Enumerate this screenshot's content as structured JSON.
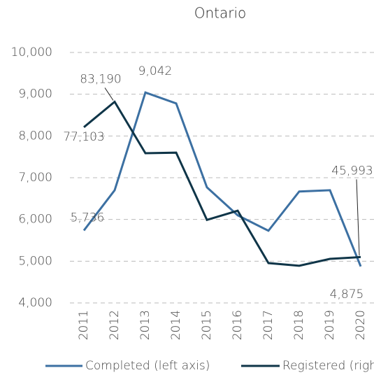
{
  "chart_data": {
    "type": "line",
    "title": "Ontario",
    "x": [
      "2011",
      "2012",
      "2013",
      "2014",
      "2015",
      "2016",
      "2017",
      "2018",
      "2019",
      "2020"
    ],
    "series": [
      {
        "name": "Completed (left axis)",
        "color": "#3c70a2",
        "values": [
          5736,
          6700,
          9042,
          8780,
          6770,
          6100,
          5730,
          6670,
          6700,
          4875
        ],
        "value_labels": [
          "5,736",
          null,
          "9,042",
          null,
          null,
          null,
          null,
          null,
          null,
          "4,875"
        ]
      },
      {
        "name": "Registered (right axis)",
        "color": "#0f3548",
        "axis": "y2",
        "values": [
          77103,
          83190,
          70860,
          71000,
          54900,
          57100,
          44550,
          43900,
          45550,
          45993
        ],
        "value_labels": [
          "77,103",
          "83,190",
          null,
          null,
          null,
          null,
          null,
          null,
          null,
          "45,993"
        ]
      }
    ],
    "ylim": [
      4000,
      10000
    ],
    "yticks": [
      {
        "value": 4000,
        "label": "4,000"
      },
      {
        "value": 5000,
        "label": "5,000"
      },
      {
        "value": 6000,
        "label": "6,000"
      },
      {
        "value": 7000,
        "label": "7,000"
      },
      {
        "value": 8000,
        "label": "8,000"
      },
      {
        "value": 9000,
        "label": "9,000"
      },
      {
        "value": 10000,
        "label": "10,000"
      }
    ],
    "y2lim": [
      35000,
      95000
    ],
    "grid": true
  }
}
